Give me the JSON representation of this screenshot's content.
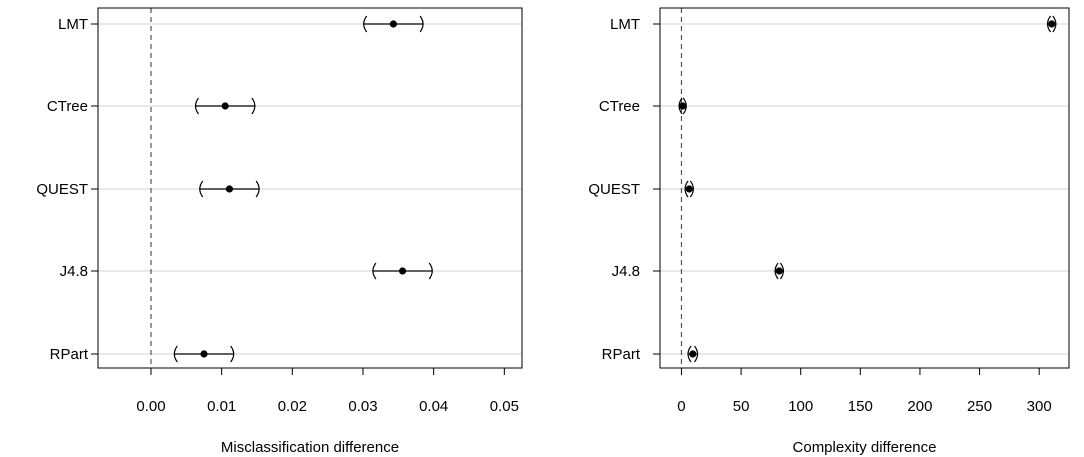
{
  "chart_data": [
    {
      "type": "scatter",
      "title": "",
      "xlabel": "Misclassification difference",
      "ylabel": "",
      "xlim": [
        -0.0075,
        0.0525
      ],
      "x_ticks": [
        0.0,
        0.01,
        0.02,
        0.03,
        0.04,
        0.05
      ],
      "x_tick_labels": [
        "0.00",
        "0.01",
        "0.02",
        "0.03",
        "0.04",
        "0.05"
      ],
      "reference_line": 0,
      "grid": "horizontal",
      "categories": [
        "LMT",
        "CTree",
        "QUEST",
        "J4.8",
        "RPart"
      ],
      "series": [
        {
          "estimates": [
            0.0343,
            0.0105,
            0.0111,
            0.0356,
            0.0075
          ],
          "lower": [
            0.0301,
            0.0063,
            0.0069,
            0.0314,
            0.0033
          ],
          "upper": [
            0.0385,
            0.0147,
            0.0153,
            0.0398,
            0.0117
          ]
        }
      ]
    },
    {
      "type": "scatter",
      "title": "",
      "xlabel": "Complexity difference",
      "ylabel": "",
      "xlim": [
        -18,
        325
      ],
      "x_ticks": [
        0,
        50,
        100,
        150,
        200,
        250,
        300
      ],
      "x_tick_labels": [
        "0",
        "50",
        "100",
        "150",
        "200",
        "250",
        "300"
      ],
      "reference_line": 0,
      "grid": "horizontal",
      "categories": [
        "LMT",
        "CTree",
        "QUEST",
        "J4.8",
        "RPart"
      ],
      "series": [
        {
          "estimates": [
            310.5,
            1,
            6.5,
            82,
            9.5
          ],
          "lower": [
            307,
            -2,
            3,
            78.5,
            5.5
          ],
          "upper": [
            314,
            4,
            10,
            85.5,
            13.5
          ]
        }
      ]
    }
  ]
}
